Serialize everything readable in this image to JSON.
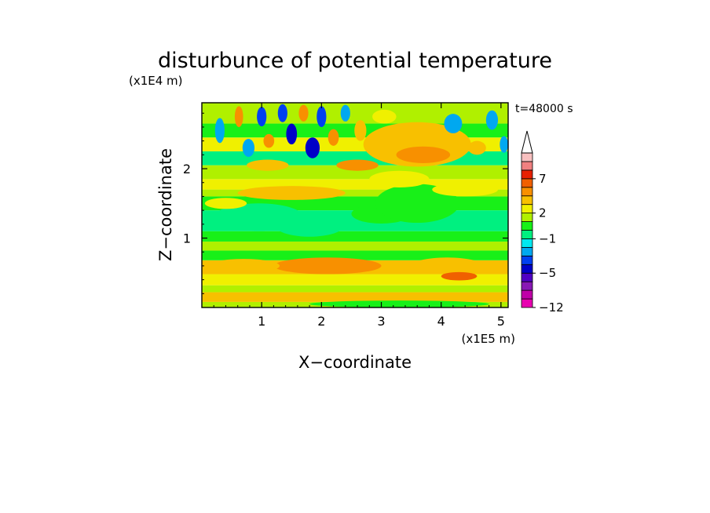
{
  "chart_data": {
    "type": "heatmap",
    "title": "disturbunce of potential temperature",
    "xlabel": "X−coordinate",
    "ylabel": "Z−coordinate",
    "x_scale_label": "(x1E5 m)",
    "y_scale_label": "(x1E4 m)",
    "time_label": "t=48000 s",
    "xlim": [
      0,
      5.12
    ],
    "ylim": [
      0,
      2.95
    ],
    "x_ticks": [
      1,
      2,
      3,
      4,
      5
    ],
    "x_tick_labels": [
      "1",
      "2",
      "3",
      "4",
      "5"
    ],
    "y_ticks": [
      1,
      2
    ],
    "y_tick_labels": [
      "1",
      "2"
    ],
    "colorbar": {
      "levels": [
        -12,
        -10,
        -8,
        -6,
        -5,
        -4,
        -3,
        -2,
        -1,
        0,
        1,
        2,
        3,
        4,
        5,
        7,
        9,
        11
      ],
      "colors": [
        "#e800b0",
        "#c000a8",
        "#8818b4",
        "#5000c4",
        "#0000c8",
        "#0040f0",
        "#00a8f0",
        "#00e8f0",
        "#00f080",
        "#18f018",
        "#b0f000",
        "#f0f000",
        "#f8c000",
        "#f89000",
        "#f06000",
        "#e82000",
        "#f08080",
        "#f8c0c0"
      ],
      "extend_top": "arrow",
      "tick_labels": [
        {
          "value": 7,
          "label": "7"
        },
        {
          "value": 2,
          "label": "2"
        },
        {
          "value": -1,
          "label": "−1"
        },
        {
          "value": -5,
          "label": "−5"
        },
        {
          "value": -12,
          "label": "−12"
        }
      ]
    },
    "bands": [
      {
        "z0": 0.0,
        "z1": 0.08,
        "level": 1
      },
      {
        "z0": 0.08,
        "z1": 0.22,
        "level": 3
      },
      {
        "z0": 0.22,
        "z1": 0.32,
        "level": 1
      },
      {
        "z0": 0.32,
        "z1": 0.48,
        "level": 2
      },
      {
        "z0": 0.48,
        "z1": 0.68,
        "level": 3
      },
      {
        "z0": 0.68,
        "z1": 0.82,
        "level": 0
      },
      {
        "z0": 0.82,
        "z1": 0.95,
        "level": 1
      },
      {
        "z0": 0.95,
        "z1": 1.1,
        "level": 0
      },
      {
        "z0": 1.1,
        "z1": 1.4,
        "level": -1
      },
      {
        "z0": 1.4,
        "z1": 1.6,
        "level": 0
      },
      {
        "z0": 1.6,
        "z1": 1.7,
        "level": 1
      },
      {
        "z0": 1.7,
        "z1": 1.85,
        "level": 2
      },
      {
        "z0": 1.85,
        "z1": 2.05,
        "level": 1
      },
      {
        "z0": 2.05,
        "z1": 2.25,
        "level": -1
      },
      {
        "z0": 2.25,
        "z1": 2.45,
        "level": 2
      },
      {
        "z0": 2.45,
        "z1": 2.65,
        "level": 0
      },
      {
        "z0": 2.65,
        "z1": 2.95,
        "level": 1
      }
    ],
    "features": [
      {
        "x": 0.95,
        "z": 1.3,
        "rx": 0.75,
        "rz": 0.2,
        "level": -1
      },
      {
        "x": 1.8,
        "z": 1.2,
        "rx": 0.6,
        "rz": 0.18,
        "level": -1
      },
      {
        "x": 3.0,
        "z": 1.35,
        "rx": 0.5,
        "rz": 0.14,
        "level": 0
      },
      {
        "x": 3.6,
        "z": 1.5,
        "rx": 0.7,
        "rz": 0.28,
        "level": 0
      },
      {
        "x": 3.6,
        "z": 2.35,
        "rx": 0.9,
        "rz": 0.32,
        "level": 3
      },
      {
        "x": 3.7,
        "z": 2.2,
        "rx": 0.45,
        "rz": 0.12,
        "level": 4
      },
      {
        "x": 3.3,
        "z": 1.85,
        "rx": 0.5,
        "rz": 0.12,
        "level": 2
      },
      {
        "x": 4.4,
        "z": 1.7,
        "rx": 0.55,
        "rz": 0.1,
        "level": 2
      },
      {
        "x": 1.5,
        "z": 1.65,
        "rx": 0.9,
        "rz": 0.1,
        "level": 3
      },
      {
        "x": 0.4,
        "z": 1.5,
        "rx": 0.35,
        "rz": 0.08,
        "level": 2
      },
      {
        "x": 2.1,
        "z": 0.6,
        "rx": 0.9,
        "rz": 0.12,
        "level": 4
      },
      {
        "x": 0.7,
        "z": 0.6,
        "rx": 0.6,
        "rz": 0.1,
        "level": 3
      },
      {
        "x": 4.1,
        "z": 0.6,
        "rx": 0.6,
        "rz": 0.12,
        "level": 3
      },
      {
        "x": 4.3,
        "z": 0.45,
        "rx": 0.3,
        "rz": 0.06,
        "level": 5
      },
      {
        "x": 3.3,
        "z": 0.05,
        "rx": 1.5,
        "rz": 0.05,
        "level": 0
      },
      {
        "x": 0.3,
        "z": 2.55,
        "rx": 0.08,
        "rz": 0.18,
        "level": -3
      },
      {
        "x": 0.62,
        "z": 2.75,
        "rx": 0.07,
        "rz": 0.15,
        "level": 4
      },
      {
        "x": 0.78,
        "z": 2.3,
        "rx": 0.1,
        "rz": 0.13,
        "level": -3
      },
      {
        "x": 1.0,
        "z": 2.75,
        "rx": 0.08,
        "rz": 0.14,
        "level": -4
      },
      {
        "x": 1.12,
        "z": 2.4,
        "rx": 0.09,
        "rz": 0.1,
        "level": 4
      },
      {
        "x": 1.35,
        "z": 2.8,
        "rx": 0.08,
        "rz": 0.13,
        "level": -4
      },
      {
        "x": 1.5,
        "z": 2.5,
        "rx": 0.09,
        "rz": 0.15,
        "level": -5
      },
      {
        "x": 1.7,
        "z": 2.8,
        "rx": 0.08,
        "rz": 0.12,
        "level": 4
      },
      {
        "x": 1.85,
        "z": 2.3,
        "rx": 0.12,
        "rz": 0.15,
        "level": -5
      },
      {
        "x": 2.0,
        "z": 2.75,
        "rx": 0.08,
        "rz": 0.15,
        "level": -4
      },
      {
        "x": 2.2,
        "z": 2.45,
        "rx": 0.09,
        "rz": 0.12,
        "level": 4
      },
      {
        "x": 2.4,
        "z": 2.8,
        "rx": 0.08,
        "rz": 0.12,
        "level": -3
      },
      {
        "x": 2.65,
        "z": 2.55,
        "rx": 0.1,
        "rz": 0.15,
        "level": 3
      },
      {
        "x": 3.05,
        "z": 2.75,
        "rx": 0.2,
        "rz": 0.1,
        "level": 2
      },
      {
        "x": 4.2,
        "z": 2.65,
        "rx": 0.15,
        "rz": 0.14,
        "level": -3
      },
      {
        "x": 4.6,
        "z": 2.3,
        "rx": 0.15,
        "rz": 0.1,
        "level": 3
      },
      {
        "x": 4.85,
        "z": 2.7,
        "rx": 0.1,
        "rz": 0.14,
        "level": -3
      },
      {
        "x": 5.05,
        "z": 2.35,
        "rx": 0.07,
        "rz": 0.12,
        "level": -3
      },
      {
        "x": 1.1,
        "z": 2.05,
        "rx": 0.35,
        "rz": 0.08,
        "level": 3
      },
      {
        "x": 2.6,
        "z": 2.05,
        "rx": 0.35,
        "rz": 0.08,
        "level": 4
      }
    ]
  }
}
